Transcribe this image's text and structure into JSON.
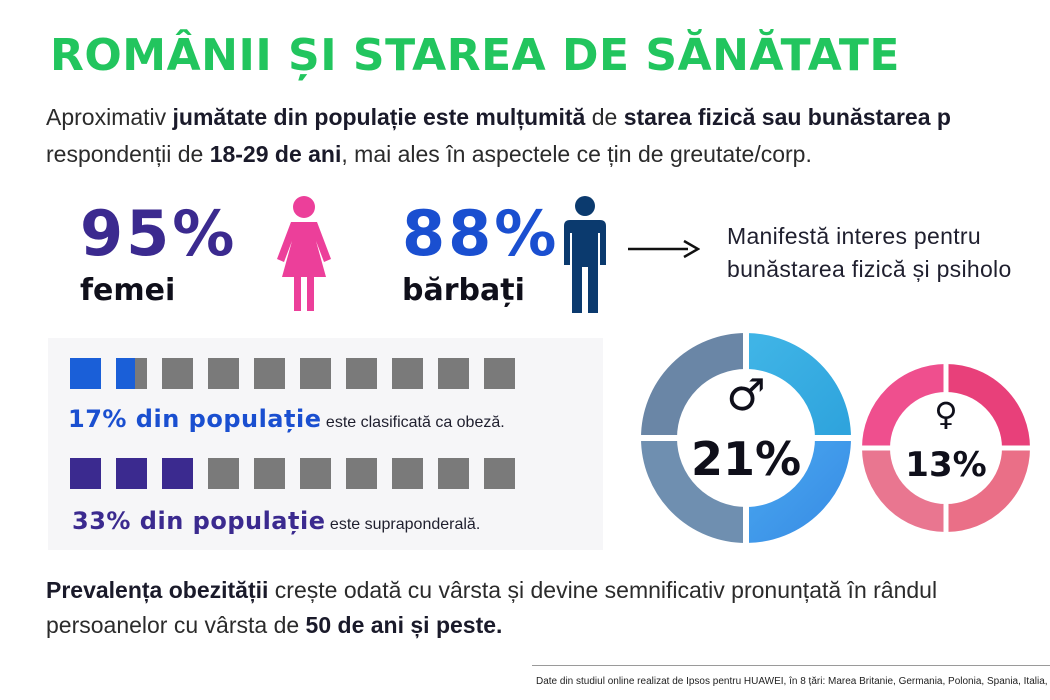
{
  "title": "ROMÂNII ȘI STAREA DE SĂNĂTATE",
  "intro": {
    "line1_a": "Aproximativ ",
    "line1_b": "jumătate din populație este mulțumită",
    "line1_c": "  de ",
    "line1_d": "starea fizică sau bunăstarea p",
    "line2_a": "respondenții de ",
    "line2_b": "18-29 de ani",
    "line2_c": ", mai ales în aspectele ce țin de greutate/corp."
  },
  "interest": {
    "women_pct": "95%",
    "women_label": "femei",
    "men_pct": "88%",
    "men_label": "bărbați",
    "statement_line1": "Manifestă interes pentru",
    "statement_line2": "bunăstarea fizică și psiholo",
    "icons": [
      "woman-icon",
      "man-icon",
      "arrow-right-icon"
    ],
    "colors": {
      "women_pct": "#3b2a8f",
      "woman_icon": "#ec3f9a",
      "men_pct": "#1a4fd0",
      "man_icon": "#0b3a6e"
    }
  },
  "weight_stats": [
    {
      "strong": "17% din populație",
      "rest": " este clasificată ca obeză.",
      "filled_fraction": 1.6,
      "total_squares": 10,
      "color": "#1a5fd8",
      "text_color": "#1a4fd0"
    },
    {
      "strong": "33% din populație",
      "rest": " este supraponderală.",
      "filled_fraction": 3,
      "total_squares": 10,
      "color": "#3b2a8f",
      "text_color": "#3b2a8f"
    }
  ],
  "donuts": {
    "male": {
      "symbol": "♂",
      "value": "21%"
    },
    "female": {
      "symbol": "♀",
      "value": "13%"
    }
  },
  "conclusion": {
    "line1_a": "Prevalența obezității",
    "line1_b": " crește odată cu vârsta și devine semnificativ pronunțată în rândul",
    "line2_a": "persoanelor cu vârsta de ",
    "line2_b": "50 de ani și peste."
  },
  "footer": "Date din studiul online realizat de Ipsos pentru HUAWEI, în 8 țări: Marea Britanie, Germania, Polonia, Spania, Italia, I"
}
